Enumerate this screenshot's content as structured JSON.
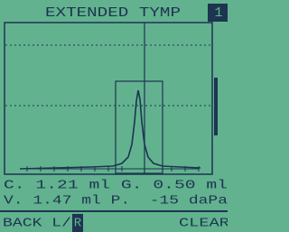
{
  "header": {
    "title": "EXTENDED TYMP",
    "badge": "1"
  },
  "readouts": [
    "C. 1.21 ml G. 0.50 ml",
    "V. 1.47 ml P.  -15 daPa"
  ],
  "footer": {
    "back": "BACK L/",
    "back_key": "R",
    "clear": "CLEAR"
  }
}
